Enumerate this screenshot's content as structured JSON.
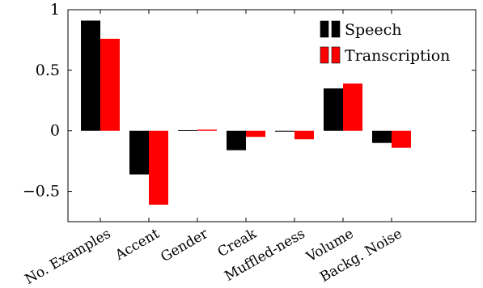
{
  "chart_data": {
    "type": "bar",
    "categories": [
      "No. Examples",
      "Accent",
      "Gender",
      "Creak",
      "Muffled-ness",
      "Volume",
      "Backg. Noise"
    ],
    "series": [
      {
        "name": "Speech",
        "color": "#000000",
        "values": [
          0.91,
          -0.36,
          0.005,
          -0.16,
          -0.005,
          0.35,
          -0.1
        ]
      },
      {
        "name": "Transcription",
        "color": "#ff0000",
        "values": [
          0.76,
          -0.61,
          0.01,
          -0.05,
          -0.07,
          0.39,
          -0.14
        ]
      }
    ],
    "yticks": [
      1,
      0.5,
      0,
      -0.5
    ],
    "ytick_labels": [
      "1",
      "0.5",
      "0",
      "−0.5"
    ],
    "ylim": [
      -0.75,
      1.0
    ],
    "grid": false,
    "legend_position": "top-right"
  }
}
